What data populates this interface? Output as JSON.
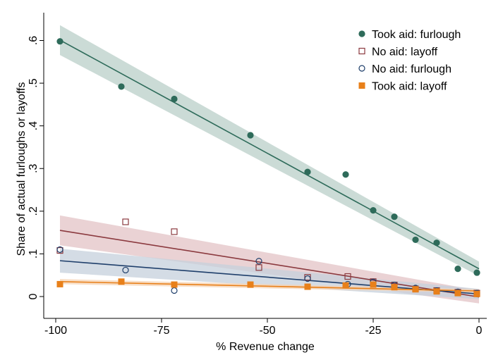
{
  "chart_data": {
    "type": "scatter",
    "xlabel": "% Revenue change",
    "ylabel": "Share of actual furloughs or layoffs",
    "xlim": [
      -100,
      0
    ],
    "ylim": [
      0,
      0.6
    ],
    "xticks": [
      -100,
      -75,
      -50,
      -25,
      0
    ],
    "xtick_labels": [
      "-100",
      "-75",
      "-50",
      "-25",
      "0"
    ],
    "yticks": [
      0,
      0.1,
      0.2,
      0.3,
      0.4,
      0.5,
      0.6
    ],
    "ytick_labels": [
      "0",
      ".1",
      ".2",
      ".3",
      ".4",
      ".5",
      ".6"
    ],
    "grid": false,
    "legend_position": "top-right",
    "series": [
      {
        "name": "Took aid: furlough",
        "marker": "filled-circle",
        "color": "#2e6b5a",
        "band_color": "#b9cfc8",
        "x": [
          -99,
          -84.5,
          -72,
          -54,
          -40.5,
          -31.5,
          -25,
          -20,
          -15,
          -10,
          -5,
          -0.5
        ],
        "y": [
          0.598,
          0.492,
          0.463,
          0.378,
          0.292,
          0.286,
          0.202,
          0.187,
          0.133,
          0.126,
          0.065,
          0.056
        ],
        "fit": {
          "x": [
            -99,
            0
          ],
          "y": [
            0.601,
            0.065
          ],
          "ci_halfwidth": [
            0.035,
            0.017
          ]
        }
      },
      {
        "name": "No aid: layoff",
        "marker": "hollow-square",
        "color": "#8b3a3f",
        "band_color": "#e3c3c5",
        "x": [
          -99,
          -83.5,
          -72,
          -52,
          -40.5,
          -31,
          -25,
          -20,
          -15,
          -10,
          -5,
          -0.5
        ],
        "y": [
          0.108,
          0.175,
          0.152,
          0.068,
          0.045,
          0.047,
          0.035,
          0.027,
          0.018,
          0.014,
          0.01,
          0.008
        ],
        "fit": {
          "x": [
            -99,
            0
          ],
          "y": [
            0.155,
            -0.001
          ],
          "ci_halfwidth": [
            0.035,
            0.015
          ]
        }
      },
      {
        "name": "No aid: furlough",
        "marker": "hollow-circle",
        "color": "#1f3f6b",
        "band_color": "#c6d0dc",
        "x": [
          -99,
          -83.5,
          -72,
          -52,
          -40.5,
          -31,
          -25,
          -20,
          -15,
          -10,
          -5,
          -0.5
        ],
        "y": [
          0.11,
          0.062,
          0.014,
          0.083,
          0.042,
          0.029,
          0.034,
          0.027,
          0.02,
          0.014,
          0.011,
          0.008
        ],
        "fit": {
          "x": [
            -99,
            0
          ],
          "y": [
            0.084,
            0.006
          ],
          "ci_halfwidth": [
            0.028,
            0.012
          ]
        }
      },
      {
        "name": "Took aid: layoff",
        "marker": "filled-square",
        "color": "#e8801a",
        "band_color": "#f6d3b3",
        "x": [
          -99,
          -84.5,
          -72,
          -54,
          -40.5,
          -31.5,
          -25,
          -20,
          -15,
          -10,
          -5,
          -0.5
        ],
        "y": [
          0.029,
          0.035,
          0.028,
          0.028,
          0.023,
          0.026,
          0.028,
          0.022,
          0.017,
          0.012,
          0.008,
          0.006
        ],
        "fit": {
          "x": [
            -99,
            0
          ],
          "y": [
            0.035,
            0.013
          ],
          "ci_halfwidth": [
            0.006,
            0.004
          ]
        }
      }
    ]
  }
}
